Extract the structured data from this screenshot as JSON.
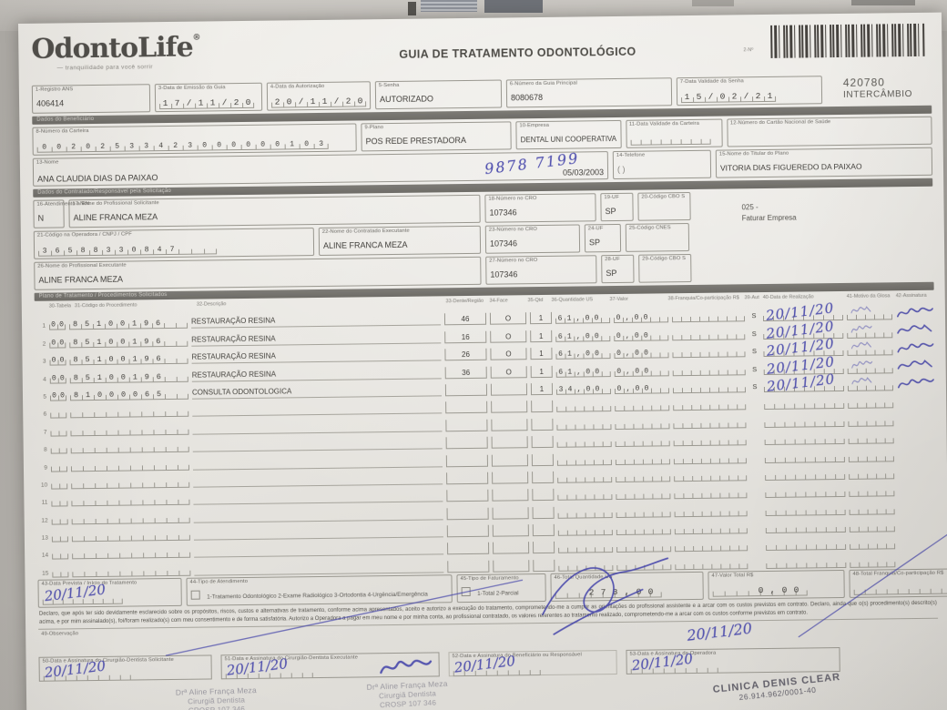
{
  "header": {
    "logo_text": "OdontoLife",
    "logo_reg": "®",
    "logo_tagline": "—  tranquilidade para você sorrir",
    "title": "GUIA DE TRATAMENTO ODONTOLÓGICO",
    "barcode_field_label": "2-Nº",
    "guide_number": "420780",
    "guide_kind": "INTERCÂMBIO"
  },
  "identification": {
    "registro_ans": {
      "label": "1-Registro ANS",
      "value": "406414"
    },
    "data_emissao": {
      "label": "3-Data de Emissão da Guia",
      "value": "17/11/20"
    },
    "data_autorizacao": {
      "label": "4-Data da Autorização",
      "value": "20/11/20"
    },
    "senha": {
      "label": "5-Senha",
      "value": "AUTORIZADO"
    },
    "numero_guia_principal": {
      "label": "6-Número da Guia Principal",
      "value": "8080678"
    },
    "validade_senha": {
      "label": "7-Data Validade da Senha",
      "value": "15/02/21"
    }
  },
  "beneficiario": {
    "section_title": "Dados do Beneficiário",
    "numero_carteira": {
      "label": "8-Número da Carteira",
      "value": "00202533423000000103"
    },
    "plano": {
      "label": "9-Plano",
      "value": "POS REDE PRESTADORA"
    },
    "empresa": {
      "label": "10-Empresa",
      "value": "DENTAL UNI COOPERATIVA"
    },
    "validade_carteira": {
      "label": "11-Data Validade da Carteira",
      "value": "  /  /  "
    },
    "cns": {
      "label": "12-Número do Cartão Nacional de Saúde",
      "value": ""
    },
    "nome": {
      "label": "13-Nome",
      "value": "ANA CLAUDIA DIAS DA PAIXAO",
      "nascimento": "05/03/2003"
    },
    "telefone": {
      "label": "14-Telefone",
      "ddd_hint": "(    )",
      "handwritten": "9878 7199"
    },
    "titular": {
      "label": "15-Nome do Titular do Plano",
      "value": "VITORIA DIAS FIGUEREDO DA PAIXAO"
    }
  },
  "contratado": {
    "section_title": "Dados do Contratado/Responsável pela Solicitação",
    "atendimento_rn": {
      "label": "16-Atendimento a RN",
      "value": "N"
    },
    "profissional_solicitante": {
      "label": "17-Nome do Profissional Solicitante",
      "value": "ALINE FRANCA MEZA"
    },
    "cro_solicitante": {
      "label": "18-Número no CRO",
      "value": "107346"
    },
    "uf_solicitante": {
      "label": "19-UF",
      "value": "SP"
    },
    "cbo_solicitante": {
      "label": "20-Código CBO S",
      "value": ""
    },
    "faturar_linha1": "025 -",
    "faturar_linha2": "Faturar Empresa",
    "codigo_operadora": {
      "label": "21-Código na Operadora / CNPJ / CPF",
      "value": "36588330847"
    },
    "contratado_executante": {
      "label": "22-Nome do Contratado Executante",
      "value": "ALINE FRANCA MEZA"
    },
    "cro_contratado": {
      "label": "23-Número no CRO",
      "value": "107346"
    },
    "uf_contratado": {
      "label": "24-UF",
      "value": "SP"
    },
    "cnes": {
      "label": "25-Código CNES",
      "value": ""
    },
    "profissional_executante": {
      "label": "26-Nome do Profissional Executante",
      "value": "ALINE FRANCA MEZA"
    },
    "cro_executante": {
      "label": "27-Número no CRO",
      "value": "107346"
    },
    "uf_executante": {
      "label": "28-UF",
      "value": "SP"
    },
    "cbo_executante": {
      "label": "29-Código CBO S",
      "value": ""
    }
  },
  "tratamento": {
    "section_title": "Plano de Tratamento / Procedimentos Solicitados",
    "headers": [
      "30-Tabela",
      "31-Código do Procedimento",
      "32-Descrição",
      "33-Dente/Região",
      "34-Face",
      "35-Qtd",
      "36-Quantidade US",
      "37-Valor",
      "38-Franquia/Co-participação R$",
      "39-Aut",
      "40-Data de Realização",
      "41-Motivo da Glosa",
      "42-Assinatura"
    ],
    "rows": [
      {
        "n": "1",
        "tabela": "00",
        "codigo": "85100196",
        "descricao": "RESTAURAÇÃO RESINA",
        "dente": "46",
        "face": "O",
        "qtd": "1",
        "us": "61,00",
        "valor": "0,00",
        "franquia": "",
        "aut": "S",
        "data_realizacao_manuscrita": "20/11/20",
        "assinado": true
      },
      {
        "n": "2",
        "tabela": "00",
        "codigo": "85100196",
        "descricao": "RESTAURAÇÃO RESINA",
        "dente": "16",
        "face": "O",
        "qtd": "1",
        "us": "61,00",
        "valor": "0,00",
        "franquia": "",
        "aut": "S",
        "data_realizacao_manuscrita": "20/11/20",
        "assinado": true
      },
      {
        "n": "3",
        "tabela": "00",
        "codigo": "85100196",
        "descricao": "RESTAURAÇÃO RESINA",
        "dente": "26",
        "face": "O",
        "qtd": "1",
        "us": "61,00",
        "valor": "0,00",
        "franquia": "",
        "aut": "S",
        "data_realizacao_manuscrita": "20/11/20",
        "assinado": true
      },
      {
        "n": "4",
        "tabela": "00",
        "codigo": "85100196",
        "descricao": "RESTAURAÇÃO RESINA",
        "dente": "36",
        "face": "O",
        "qtd": "1",
        "us": "61,00",
        "valor": "0,00",
        "franquia": "",
        "aut": "S",
        "data_realizacao_manuscrita": "20/11/20",
        "assinado": true
      },
      {
        "n": "5",
        "tabela": "00",
        "codigo": "81000065",
        "descricao": "CONSULTA ODONTOLOGICA",
        "dente": "",
        "face": "",
        "qtd": "1",
        "us": "34,00",
        "valor": "0,00",
        "franquia": "",
        "aut": "S",
        "data_realizacao_manuscrita": "20/11/20",
        "assinado": true
      },
      {
        "n": "6",
        "tabela": "",
        "codigo": "",
        "descricao": "",
        "dente": "",
        "face": "",
        "qtd": "",
        "us": "",
        "valor": "",
        "franquia": "",
        "aut": "",
        "data_realizacao_manuscrita": "",
        "assinado": false
      },
      {
        "n": "7",
        "tabela": "",
        "codigo": "",
        "descricao": "",
        "dente": "",
        "face": "",
        "qtd": "",
        "us": "",
        "valor": "",
        "franquia": "",
        "aut": "",
        "data_realizacao_manuscrita": "",
        "assinado": false
      },
      {
        "n": "8",
        "tabela": "",
        "codigo": "",
        "descricao": "",
        "dente": "",
        "face": "",
        "qtd": "",
        "us": "",
        "valor": "",
        "franquia": "",
        "aut": "",
        "data_realizacao_manuscrita": "",
        "assinado": false
      },
      {
        "n": "9",
        "tabela": "",
        "codigo": "",
        "descricao": "",
        "dente": "",
        "face": "",
        "qtd": "",
        "us": "",
        "valor": "",
        "franquia": "",
        "aut": "",
        "data_realizacao_manuscrita": "",
        "assinado": false
      },
      {
        "n": "10",
        "tabela": "",
        "codigo": "",
        "descricao": "",
        "dente": "",
        "face": "",
        "qtd": "",
        "us": "",
        "valor": "",
        "franquia": "",
        "aut": "",
        "data_realizacao_manuscrita": "",
        "assinado": false
      },
      {
        "n": "11",
        "tabela": "",
        "codigo": "",
        "descricao": "",
        "dente": "",
        "face": "",
        "qtd": "",
        "us": "",
        "valor": "",
        "franquia": "",
        "aut": "",
        "data_realizacao_manuscrita": "",
        "assinado": false
      },
      {
        "n": "12",
        "tabela": "",
        "codigo": "",
        "descricao": "",
        "dente": "",
        "face": "",
        "qtd": "",
        "us": "",
        "valor": "",
        "franquia": "",
        "aut": "",
        "data_realizacao_manuscrita": "",
        "assinado": false
      },
      {
        "n": "13",
        "tabela": "",
        "codigo": "",
        "descricao": "",
        "dente": "",
        "face": "",
        "qtd": "",
        "us": "",
        "valor": "",
        "franquia": "",
        "aut": "",
        "data_realizacao_manuscrita": "",
        "assinado": false
      },
      {
        "n": "14",
        "tabela": "",
        "codigo": "",
        "descricao": "",
        "dente": "",
        "face": "",
        "qtd": "",
        "us": "",
        "valor": "",
        "franquia": "",
        "aut": "",
        "data_realizacao_manuscrita": "",
        "assinado": false
      },
      {
        "n": "15",
        "tabela": "",
        "codigo": "",
        "descricao": "",
        "dente": "",
        "face": "",
        "qtd": "",
        "us": "",
        "valor": "",
        "franquia": "",
        "aut": "",
        "data_realizacao_manuscrita": "",
        "assinado": false
      }
    ]
  },
  "fechamento": {
    "data_prevista": {
      "label": "43-Data Prevista / Início do Tratamento",
      "manuscrito": "20/11/20"
    },
    "tipo_atendimento": {
      "label": "44-Tipo de Atendimento",
      "opcoes": "1-Tratamento Odontológico      2-Exame Radiológico      3-Ortodontia      4-Urgência/Emergência"
    },
    "tipo_faturamento": {
      "label": "45-Tipo de Faturamento",
      "opcoes": "1-Total  2-Parcial"
    },
    "total_us": {
      "label": "46-Total Quantidade US",
      "value": "278,00"
    },
    "valor_total": {
      "label": "47-Valor Total R$",
      "value": "0,00"
    },
    "total_franquia": {
      "label": "48-Total Franquia/Co-participação R$",
      "value": ""
    }
  },
  "declaracao": {
    "texto": "Declaro, que após ter sido devidamente esclarecido sobre os propósitos, riscos, custos e alternativas de tratamento, conforme acima apresentados, aceito e autorizo a execução do tratamento, comprometendo-me a cumprir as orientações do profissional assistente e a arcar com os custos previstos em contrato. Declaro, ainda que o(s) procedimento(s) descrito(s) acima, e por mim assinalado(s), foi/foram realizado(s) com meu consentimento e de forma satisfatória. Autorizo a Operadora a pagar em meu nome e por minha conta, ao profissional contratado, os valores referentes ao tratamento realizado, comprometendo-me a arcar com os custos conforme previstos em contrato.",
    "observacao_label": "49-Observação",
    "observacao_manuscrito": "20/11/20"
  },
  "assinaturas": {
    "boxes": [
      {
        "label": "50-Data e Assinatura do Cirurgião-Dentista Solicitante",
        "manuscrito": "20/11/20"
      },
      {
        "label": "51-Data e Assinatura do Cirurgião-Dentista Executante",
        "manuscrito": "20/11/20"
      },
      {
        "label": "52-Data e Assinatura do Beneficiário ou Responsável",
        "manuscrito": "20/11/20"
      },
      {
        "label": "53-Data e Assinatura da Operadora",
        "manuscrito": "20/11/20"
      }
    ],
    "carimbo_solicitante": [
      "Drª Aline França Meza",
      "Cirurgiã Dentista",
      "CROSP 107 346"
    ],
    "carimbo_executante": [
      "Drª Aline França Meza",
      "Cirurgiã Dentista",
      "CROSP 107 346"
    ],
    "carimbo_clinica": [
      "CLINICA DENIS CLEAR",
      "26.914.962/0001-40"
    ]
  },
  "colors": {
    "ink": "#3e3ea8",
    "paper": "#e9e7e2",
    "stamp_gray": "#9a98a0",
    "clinic_stamp": "#63616b"
  }
}
